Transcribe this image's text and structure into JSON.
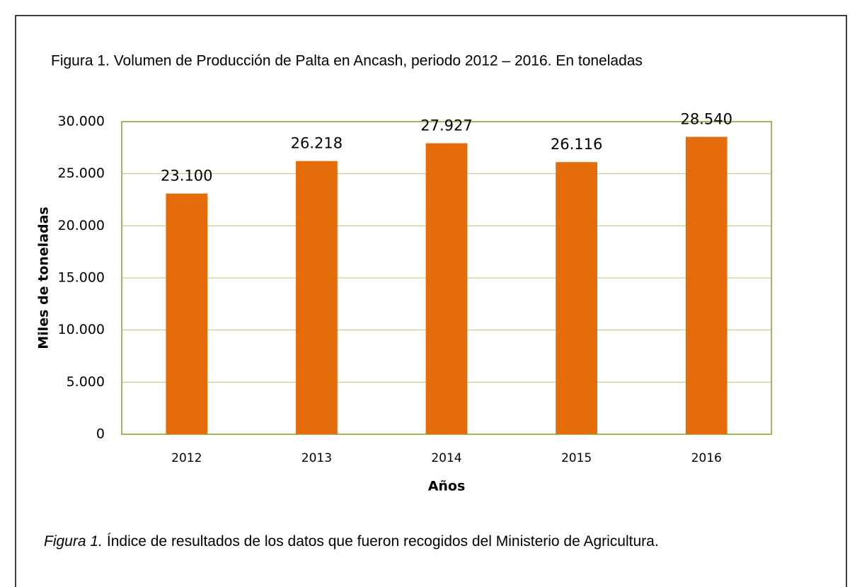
{
  "chart_data": {
    "type": "bar",
    "title": "Figura  1. Volumen de Producción de Palta en Ancash, periodo 2012 – 2016. En toneladas",
    "caption_label": "Figura 1.",
    "caption": "Índice de resultados de los datos que fueron recogidos del Ministerio de Agricultura.",
    "x_label": "Años",
    "y_label": "Miles de toneladas",
    "categories": [
      "2012",
      "2013",
      "2014",
      "2015",
      "2016"
    ],
    "values": [
      23100,
      26218,
      27927,
      26116,
      28540
    ],
    "value_labels": [
      "23.100",
      "26.218",
      "27.927",
      "26.116",
      "28.540"
    ],
    "color": "#e46c0a",
    "ylim": [
      0,
      30000
    ],
    "yticks": [
      0,
      {
        "value": 5000,
        "label": "5.000"
      },
      {
        "value": 10000,
        "label": "10.000"
      },
      {
        "value": 15000,
        "label": "15.000"
      },
      {
        "value": 20000,
        "label": "20.000"
      },
      {
        "value": 25000,
        "label": "25.000"
      },
      {
        "value": 30000,
        "label": "30.000"
      }
    ],
    "grid": true
  }
}
